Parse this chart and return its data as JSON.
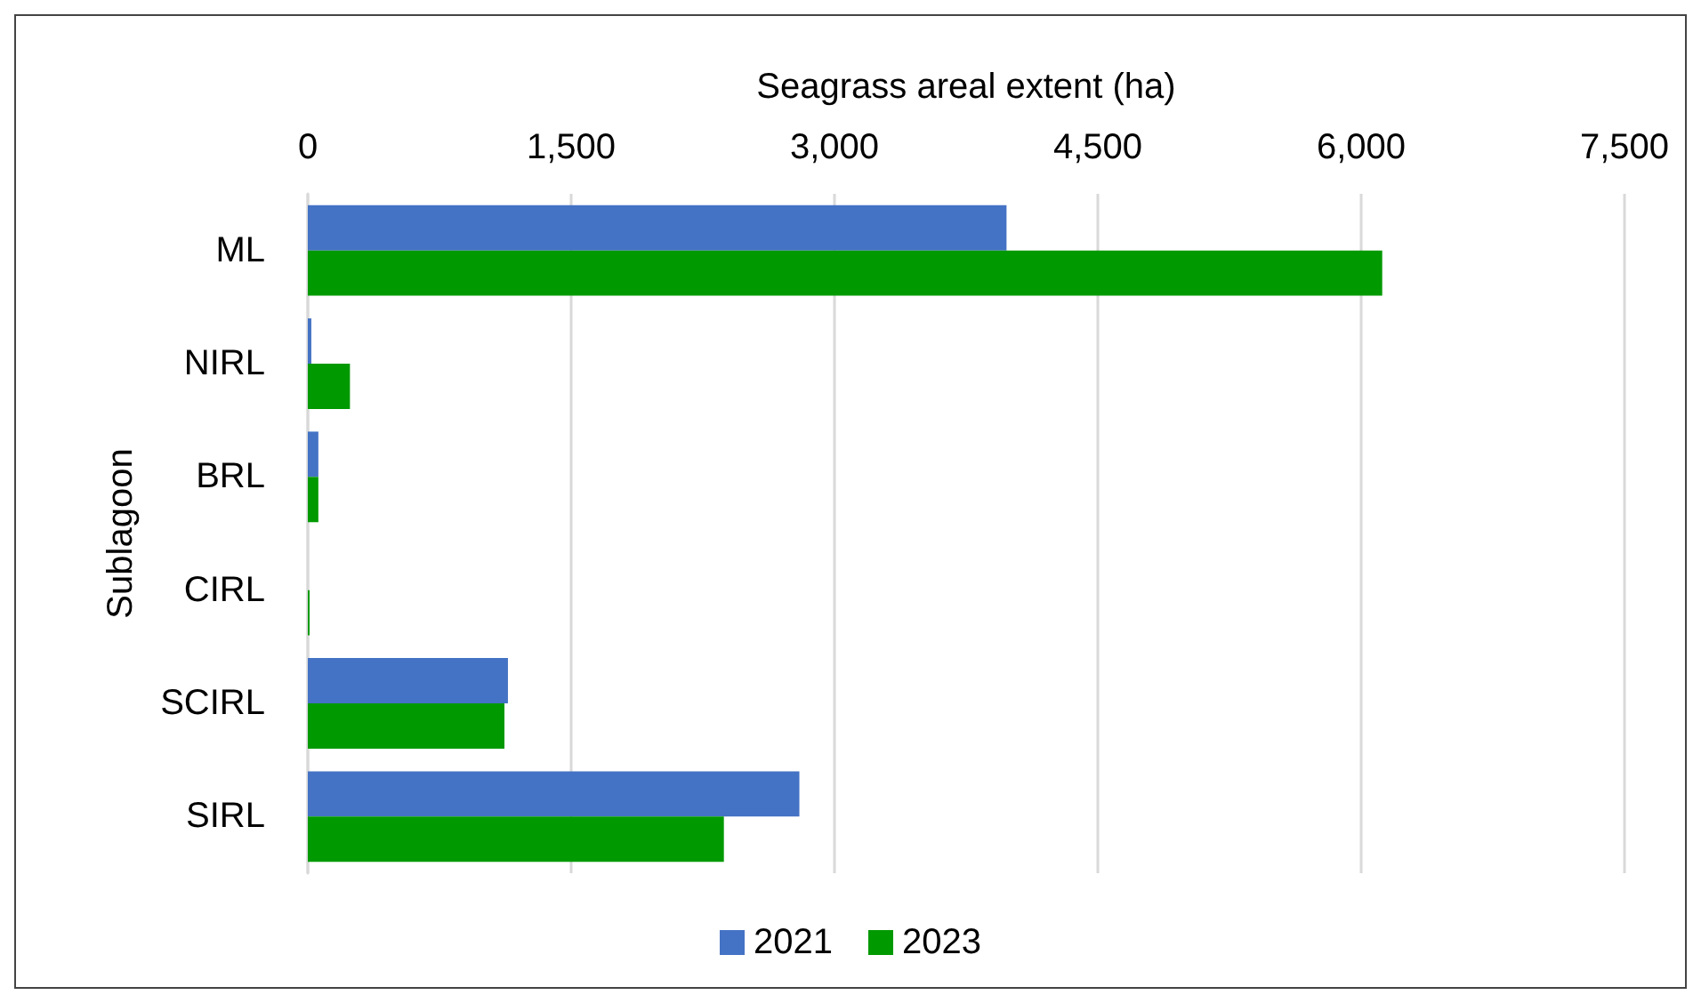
{
  "chart_data": {
    "type": "bar",
    "orientation": "horizontal",
    "xlabel": "Seagrass areal extent (ha)",
    "ylabel": "Sublagoon",
    "categories": [
      "ML",
      "NIRL",
      "BRL",
      "CIRL",
      "SCIRL",
      "SIRL"
    ],
    "series": [
      {
        "name": "2021",
        "color": "#4472c4",
        "values": [
          3980,
          20,
          60,
          0,
          1140,
          2800
        ]
      },
      {
        "name": "2023",
        "color": "#009900",
        "values": [
          6120,
          240,
          60,
          10,
          1120,
          2370
        ]
      }
    ],
    "xlim": [
      0,
      7500
    ],
    "xticks": [
      0,
      {
        "value": 1500,
        "label": "1,500"
      },
      {
        "value": 3000,
        "label": "3,000"
      },
      {
        "value": 4500,
        "label": "4,500"
      },
      {
        "value": 6000,
        "label": "6,000"
      },
      {
        "value": 7500,
        "label": "7,500"
      }
    ],
    "grid": "x",
    "legend": "bottom"
  }
}
